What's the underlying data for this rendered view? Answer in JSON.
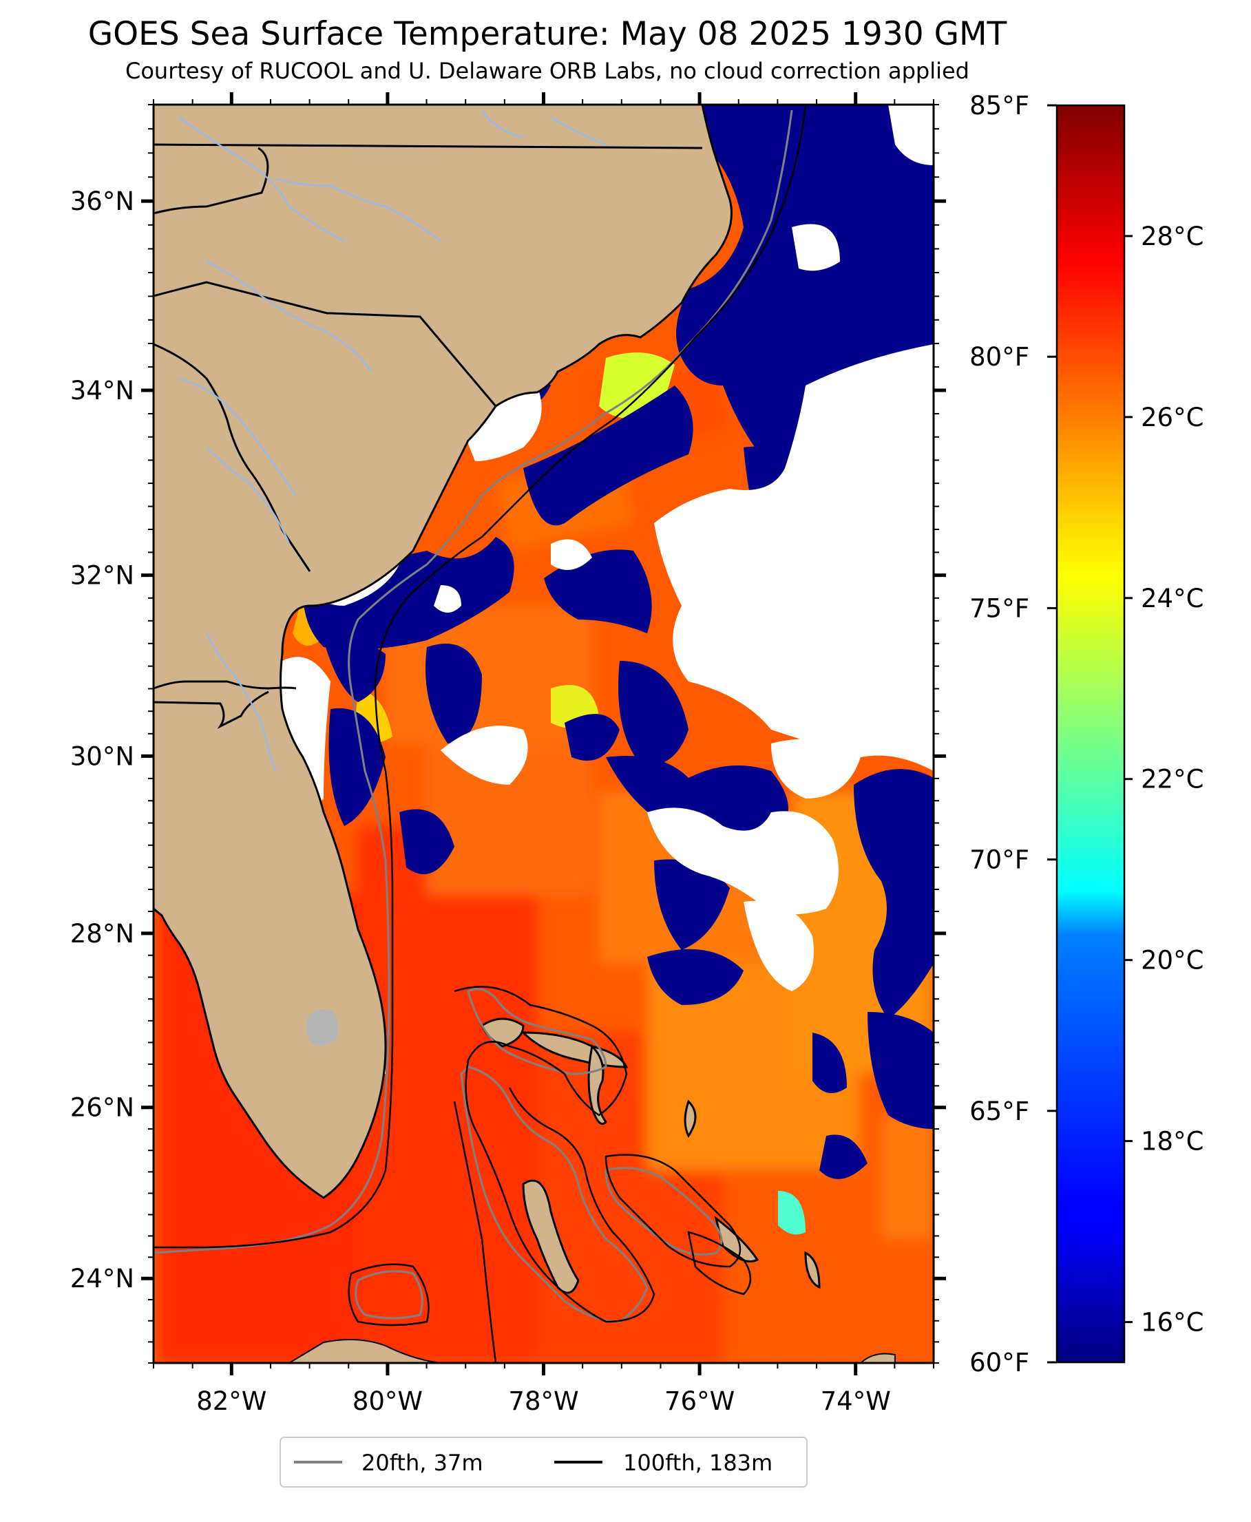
{
  "title": "GOES Sea Surface Temperature: May 08 2025 1930 GMT",
  "subtitle": "Courtesy of RUCOOL and U. Delaware ORB Labs, no cloud correction applied",
  "map": {
    "extent": {
      "lon_min": -83,
      "lon_max": -73,
      "lat_min": 23,
      "lat_max": 37
    },
    "lat_ticks": [
      {
        "value": 36,
        "label": "36°N"
      },
      {
        "value": 34,
        "label": "34°N"
      },
      {
        "value": 32,
        "label": "32°N"
      },
      {
        "value": 30,
        "label": "30°N"
      },
      {
        "value": 28,
        "label": "28°N"
      },
      {
        "value": 26,
        "label": "26°N"
      },
      {
        "value": 24,
        "label": "24°N"
      }
    ],
    "lon_ticks": [
      {
        "value": -82,
        "label": "82°W"
      },
      {
        "value": -80,
        "label": "80°W"
      },
      {
        "value": -78,
        "label": "78°W"
      },
      {
        "value": -76,
        "label": "76°W"
      },
      {
        "value": -74,
        "label": "74°W"
      }
    ],
    "colors": {
      "land": "#d2b48c",
      "cloud": "#ffffff",
      "cold_water": "#00008b",
      "state_border": "#000000",
      "river": "#9ab8e0",
      "isobath_20fth": "#808080",
      "isobath_100fth": "#000000"
    }
  },
  "colorbar": {
    "colormap": "jet",
    "celsius_ticks": [
      {
        "value": 28,
        "label": "28°C"
      },
      {
        "value": 26,
        "label": "26°C"
      },
      {
        "value": 24,
        "label": "24°C"
      },
      {
        "value": 22,
        "label": "22°C"
      },
      {
        "value": 20,
        "label": "20°C"
      },
      {
        "value": 18,
        "label": "18°C"
      },
      {
        "value": 16,
        "label": "16°C"
      }
    ],
    "fahrenheit_ticks": [
      {
        "value": 85,
        "label": "85°F"
      },
      {
        "value": 80,
        "label": "80°F"
      },
      {
        "value": 75,
        "label": "75°F"
      },
      {
        "value": 70,
        "label": "70°F"
      },
      {
        "value": 65,
        "label": "65°F"
      },
      {
        "value": 60,
        "label": "60°F"
      }
    ],
    "range_f": [
      60,
      85
    ]
  },
  "legend": {
    "entries": [
      {
        "label": "20fth, 37m",
        "color": "#808080"
      },
      {
        "label": "100fth, 183m",
        "color": "#000000"
      }
    ]
  }
}
